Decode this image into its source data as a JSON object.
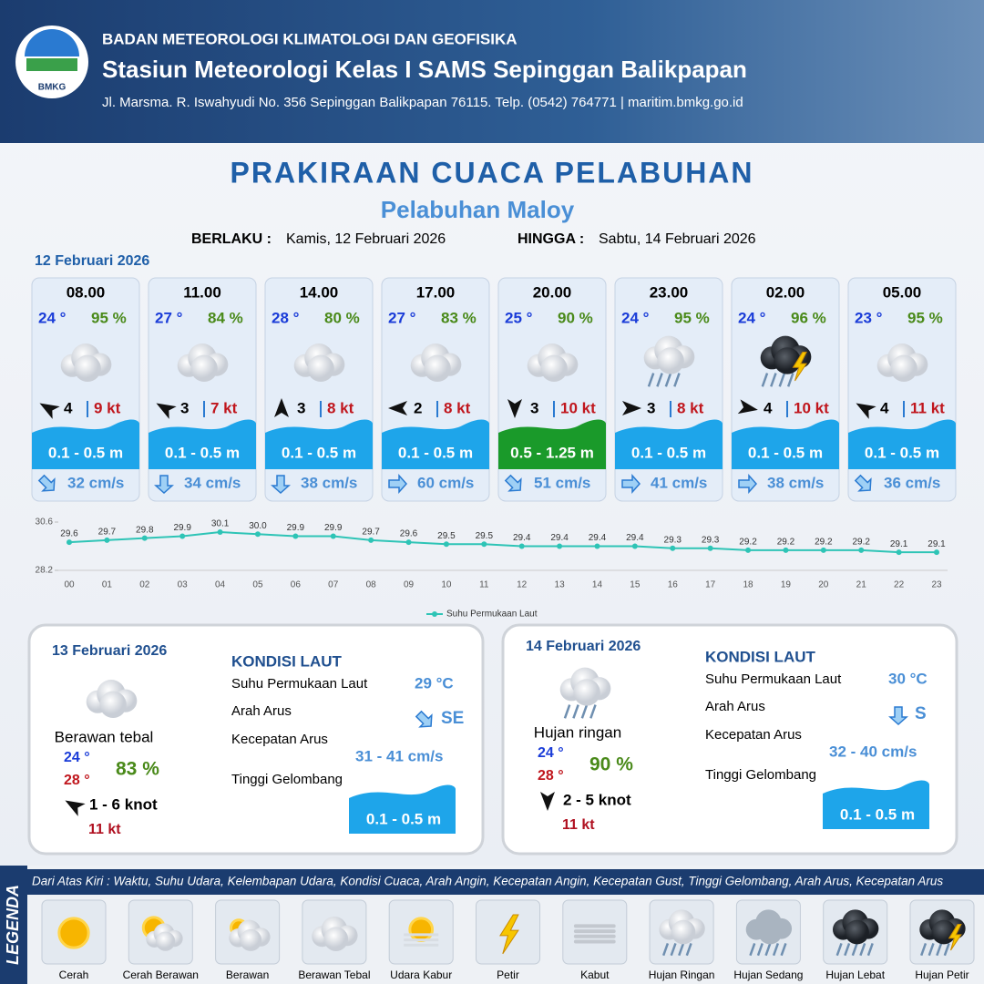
{
  "header": {
    "logo_text": "BMKG",
    "agency": "BADAN METEOROLOGI KLIMATOLOGI DAN GEOFISIKA",
    "station": "Stasiun Meteorologi Kelas I SAMS Sepinggan Balikpapan",
    "address": "Jl. Marsma. R. Iswahyudi No. 356 Sepinggan Balikpapan 76115. Telp. (0542) 764771 | maritim.bmkg.go.id"
  },
  "title": "PRAKIRAAN CUACA PELABUHAN",
  "subtitle": "Pelabuhan Maloy",
  "validity": {
    "from_label": "BERLAKU :",
    "from": "Kamis, 12 Februari 2026",
    "to_label": "HINGGA :",
    "to": "Sabtu, 14 Februari 2026"
  },
  "day1": {
    "date": "12 Februari 2026",
    "slots": [
      {
        "time": "08.00",
        "temp": "24 °",
        "humidity": "95 %",
        "condition": "Berawan Tebal",
        "wind": "4",
        "gust": "9 kt",
        "wave": "0.1 - 0.5 m",
        "wave_color": "#1ea5ea",
        "current": "32 cm/s"
      },
      {
        "time": "11.00",
        "temp": "27 °",
        "humidity": "84 %",
        "condition": "Berawan Tebal",
        "wind": "3",
        "gust": "7 kt",
        "wave": "0.1 - 0.5 m",
        "wave_color": "#1ea5ea",
        "current": "34 cm/s"
      },
      {
        "time": "14.00",
        "temp": "28 °",
        "humidity": "80 %",
        "condition": "Berawan Tebal",
        "wind": "3",
        "gust": "8 kt",
        "wave": "0.1 - 0.5 m",
        "wave_color": "#1ea5ea",
        "current": "38 cm/s"
      },
      {
        "time": "17.00",
        "temp": "27 °",
        "humidity": "83 %",
        "condition": "Berawan Tebal",
        "wind": "2",
        "gust": "8 kt",
        "wave": "0.1 - 0.5 m",
        "wave_color": "#1ea5ea",
        "current": "60 cm/s"
      },
      {
        "time": "20.00",
        "temp": "25 °",
        "humidity": "90 %",
        "condition": "Berawan Tebal",
        "wind": "3",
        "gust": "10 kt",
        "wave": "0.5 - 1.25 m",
        "wave_color": "#1a9a2a",
        "current": "51 cm/s"
      },
      {
        "time": "23.00",
        "temp": "24 °",
        "humidity": "95 %",
        "condition": "Hujan Ringan",
        "wind": "3",
        "gust": "8 kt",
        "wave": "0.1 - 0.5 m",
        "wave_color": "#1ea5ea",
        "current": "41 cm/s"
      },
      {
        "time": "02.00",
        "temp": "24 °",
        "humidity": "96 %",
        "condition": "Hujan Petir",
        "wind": "4",
        "gust": "10 kt",
        "wave": "0.1 - 0.5 m",
        "wave_color": "#1ea5ea",
        "current": "38 cm/s"
      },
      {
        "time": "05.00",
        "temp": "23 °",
        "humidity": "95 %",
        "condition": "Berawan Tebal",
        "wind": "4",
        "gust": "11 kt",
        "wave": "0.1 - 0.5 m",
        "wave_color": "#1ea5ea",
        "current": "36 cm/s"
      }
    ]
  },
  "chart_data": {
    "type": "line",
    "categories": [
      "00",
      "01",
      "02",
      "03",
      "04",
      "05",
      "06",
      "07",
      "08",
      "09",
      "10",
      "11",
      "12",
      "13",
      "14",
      "15",
      "16",
      "17",
      "18",
      "19",
      "20",
      "21",
      "22",
      "23"
    ],
    "series": [
      {
        "name": "Suhu Permukaan Laut",
        "color": "#2ec4b6",
        "values": [
          29.6,
          29.7,
          29.8,
          29.9,
          30.1,
          30.0,
          29.9,
          29.9,
          29.7,
          29.6,
          29.5,
          29.5,
          29.4,
          29.4,
          29.4,
          29.4,
          29.3,
          29.3,
          29.2,
          29.2,
          29.2,
          29.2,
          29.1,
          29.1
        ],
        "value_labels": [
          "29.6",
          "29.7",
          "29.8",
          "29.9",
          "30.1",
          "30.0",
          "29.9",
          "29.9",
          "29.7",
          "29.6",
          "29.5",
          "29.5",
          "29.4",
          "29.4",
          "29.4",
          "29.4",
          "29.3",
          "29.3",
          "29.2",
          "29.2",
          "29.2",
          "29.2",
          "29.1",
          "29.1"
        ]
      }
    ],
    "ylim": [
      28.2,
      30.6
    ],
    "yticks": [
      28.2,
      30.6
    ],
    "legend": "bottom"
  },
  "days": [
    {
      "date": "13 Februari 2026",
      "condition": "Berawan tebal",
      "icon": "Berawan Tebal",
      "temp_a": "24 °",
      "temp_b": "28 °",
      "humidity": "83 %",
      "wind": "1 - 6 knot",
      "gust": "11 kt",
      "sea_title": "KONDISI LAUT",
      "sst_label": "Suhu Permukaan Laut",
      "sst": "29 °C",
      "dir_label": "Arah Arus",
      "dir": "SE",
      "speed_label": "Kecepatan Arus",
      "speed": "31  - 41 cm/s",
      "wave_label": "Tinggi Gelombang",
      "wave": "0.1 - 0.5 m"
    },
    {
      "date": "14 Februari 2026",
      "condition": "Hujan ringan",
      "icon": "Hujan Ringan",
      "temp_a": "24 °",
      "temp_b": "28 °",
      "humidity": "90 %",
      "wind": "2 - 5 knot",
      "gust": "11 kt",
      "sea_title": "KONDISI LAUT",
      "sst_label": "Suhu Permukaan Laut",
      "sst": "30 °C",
      "dir_label": "Arah Arus",
      "dir": "S",
      "speed_label": "Kecepatan Arus",
      "speed": "32  - 40 cm/s",
      "wave_label": "Tinggi Gelombang",
      "wave": "0.1 - 0.5 m"
    }
  ],
  "legend": {
    "title": "LEGENDA",
    "description": "Dari Atas Kiri : Waktu, Suhu Udara, Kelembapan Udara, Kondisi Cuaca, Arah Angin, Kecepatan Angin, Kecepatan Gust, Tinggi Gelombang, Arah Arus, Kecepatan Arus",
    "items": [
      "Cerah",
      "Cerah Berawan",
      "Berawan",
      "Berawan Tebal",
      "Udara Kabur",
      "Petir",
      "Kabut",
      "Hujan Ringan",
      "Hujan Sedang",
      "Hujan Lebat",
      "Hujan Petir"
    ]
  }
}
